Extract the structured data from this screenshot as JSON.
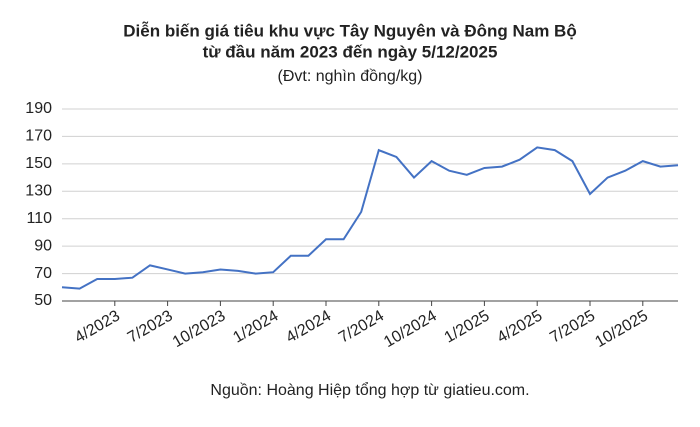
{
  "chart_data": {
    "type": "line",
    "title": [
      "Diễn biến giá tiêu khu vực Tây Nguyên và Đông Nam Bộ",
      "từ đầu năm 2023 đến ngày 5/12/2025"
    ],
    "subtitle": "(Đvt: nghìn đồng/kg)",
    "source": "Nguồn: Hoàng Hiệp tổng hợp từ giatieu.com.",
    "categories": [
      null,
      null,
      null,
      "4/2023",
      null,
      null,
      "7/2023",
      null,
      null,
      "10/2023",
      null,
      null,
      "1/2024",
      null,
      null,
      "4/2024",
      null,
      null,
      "7/2024",
      null,
      null,
      "10/2024",
      null,
      null,
      "1/2025",
      null,
      null,
      "4/2025",
      null,
      null,
      "7/2025",
      null,
      null,
      "10/2025",
      null,
      null
    ],
    "values": [
      60,
      59,
      66,
      66,
      67,
      76,
      73,
      70,
      71,
      73,
      72,
      70,
      71,
      83,
      83,
      95,
      95,
      115,
      160,
      155,
      140,
      152,
      145,
      142,
      147,
      148,
      153,
      162,
      160,
      152,
      128,
      140,
      145,
      152,
      148,
      149
    ],
    "color": "#4472c4",
    "ylim": [
      50,
      190
    ],
    "yticks": [
      50,
      70,
      90,
      110,
      130,
      150,
      170,
      190
    ],
    "grid": true
  }
}
